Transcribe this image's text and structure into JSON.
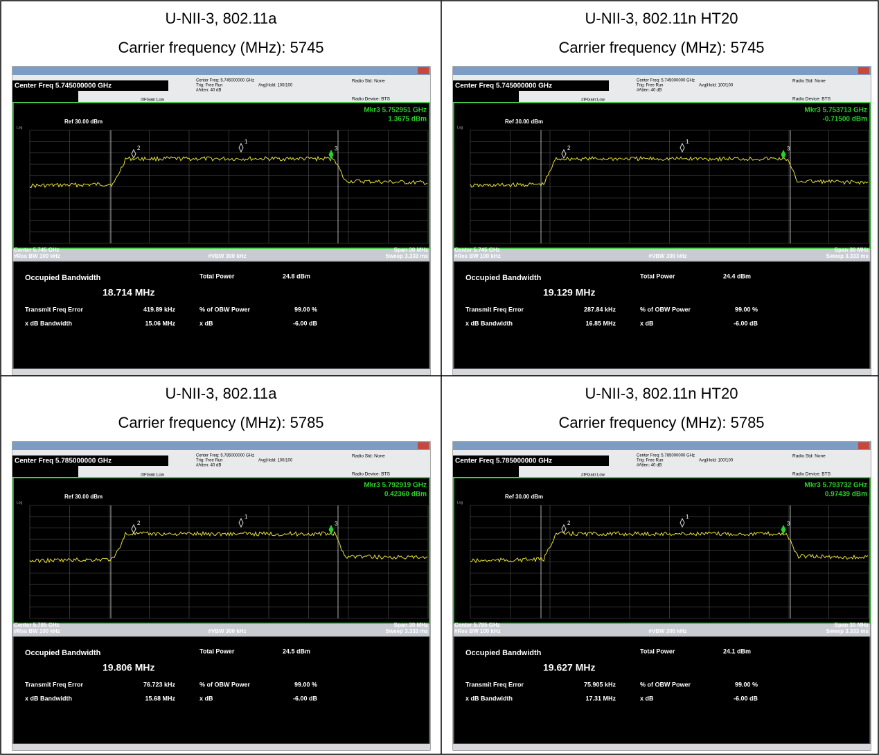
{
  "cells": [
    {
      "heading": [
        "U-NII-3, 802.11a",
        "Carrier frequency (MHz): 5745"
      ],
      "screen": {
        "center_freq_box": "Center Freq 5.745000000 GHz",
        "settings": [
          "Center Freq: 5.745000000 GHz",
          "Trig: Free Run",
          "#Atten: 40 dB"
        ],
        "avg_hold": "Avg|Hold: 100/100",
        "if_gain": "#IFGain:Low",
        "radio_std": "Radio Std: None",
        "radio_device": "Radio Device: BTS",
        "marker_freq": "Mkr3 5.752951 GHz",
        "marker_level": "1.3675 dBm",
        "ref_level": "Ref 30.00 dBm",
        "scale": "Log",
        "marker_labels": [
          "1",
          "2",
          "3"
        ],
        "center": "Center 5.745 GHz",
        "res_bw": "#Res BW 100 kHz",
        "vbw": "#VBW 300 kHz",
        "span": "Span 30 MHz",
        "sweep": "Sweep 3.333 ms",
        "results": {
          "obw_label": "Occupied Bandwidth",
          "obw_value": "18.714 MHz",
          "total_power_label": "Total Power",
          "total_power_value": "24.8 dBm",
          "freq_error_label": "Transmit Freq Error",
          "freq_error_value": "419.89 kHz",
          "obw_power_label": "% of OBW Power",
          "obw_power_value": "99.00 %",
          "xdb_bw_label": "x dB Bandwidth",
          "xdb_bw_value": "15.06 MHz",
          "xdb_label": "x dB",
          "xdb_value": "-6.00 dB"
        }
      }
    },
    {
      "heading": [
        "U-NII-3, 802.11n HT20",
        "Carrier frequency (MHz): 5745"
      ],
      "screen": {
        "center_freq_box": "Center Freq 5.745000000 GHz",
        "settings": [
          "Center Freq: 5.745000000 GHz",
          "Trig: Free Run",
          "#Atten: 40 dB"
        ],
        "avg_hold": "Avg|Hold: 100/100",
        "if_gain": "#IFGain:Low",
        "radio_std": "Radio Std: None",
        "radio_device": "Radio Device: BTS",
        "marker_freq": "Mkr3 5.753713 GHz",
        "marker_level": "-0.71500 dBm",
        "ref_level": "Ref 30.00 dBm",
        "scale": "Log",
        "marker_labels": [
          "1",
          "2",
          "3"
        ],
        "center": "Center 5.745 GHz",
        "res_bw": "#Res BW 100 kHz",
        "vbw": "#VBW 300 kHz",
        "span": "Span 30 MHz",
        "sweep": "Sweep 3.333 ms",
        "results": {
          "obw_label": "Occupied Bandwidth",
          "obw_value": "19.129 MHz",
          "total_power_label": "Total Power",
          "total_power_value": "24.4 dBm",
          "freq_error_label": "Transmit Freq Error",
          "freq_error_value": "287.84 kHz",
          "obw_power_label": "% of OBW Power",
          "obw_power_value": "99.00 %",
          "xdb_bw_label": "x dB Bandwidth",
          "xdb_bw_value": "16.85 MHz",
          "xdb_label": "x dB",
          "xdb_value": "-6.00 dB"
        }
      }
    },
    {
      "heading": [
        "U-NII-3, 802.11a",
        "Carrier frequency (MHz): 5785"
      ],
      "screen": {
        "center_freq_box": "Center Freq 5.785000000 GHz",
        "settings": [
          "Center Freq: 5.785000000 GHz",
          "Trig: Free Run",
          "#Atten: 40 dB"
        ],
        "avg_hold": "Avg|Hold: 100/100",
        "if_gain": "#IFGain:Low",
        "radio_std": "Radio Std: None",
        "radio_device": "Radio Device: BTS",
        "marker_freq": "Mkr3 5.792919 GHz",
        "marker_level": "0.42360 dBm",
        "ref_level": "Ref 30.00 dBm",
        "scale": "Log",
        "marker_labels": [
          "1",
          "2",
          "3"
        ],
        "center": "Center 5.785 GHz",
        "res_bw": "#Res BW 100 kHz",
        "vbw": "#VBW 300 kHz",
        "span": "Span 30 MHz",
        "sweep": "Sweep 3.333 ms",
        "results": {
          "obw_label": "Occupied Bandwidth",
          "obw_value": "19.806 MHz",
          "total_power_label": "Total Power",
          "total_power_value": "24.5 dBm",
          "freq_error_label": "Transmit Freq Error",
          "freq_error_value": "76.723 kHz",
          "obw_power_label": "% of OBW Power",
          "obw_power_value": "99.00 %",
          "xdb_bw_label": "x dB Bandwidth",
          "xdb_bw_value": "15.68 MHz",
          "xdb_label": "x dB",
          "xdb_value": "-6.00 dB"
        }
      }
    },
    {
      "heading": [
        "U-NII-3, 802.11n HT20",
        "Carrier frequency (MHz): 5785"
      ],
      "screen": {
        "center_freq_box": "Center Freq 5.785000000 GHz",
        "settings": [
          "Center Freq: 5.785000000 GHz",
          "Trig: Free Run",
          "#Atten: 40 dB"
        ],
        "avg_hold": "Avg|Hold: 100/100",
        "if_gain": "#IFGain:Low",
        "radio_std": "Radio Std: None",
        "radio_device": "Radio Device: BTS",
        "marker_freq": "Mkr3 5.793732 GHz",
        "marker_level": "0.97439 dBm",
        "ref_level": "Ref 30.00 dBm",
        "scale": "Log",
        "marker_labels": [
          "1",
          "2",
          "3"
        ],
        "center": "Center 5.785 GHz",
        "res_bw": "#Res BW 100 kHz",
        "vbw": "#VBW 300 kHz",
        "span": "Span 30 MHz",
        "sweep": "Sweep 3.333 ms",
        "results": {
          "obw_label": "Occupied Bandwidth",
          "obw_value": "19.627 MHz",
          "total_power_label": "Total Power",
          "total_power_value": "24.1 dBm",
          "freq_error_label": "Transmit Freq Error",
          "freq_error_value": "75.905 kHz",
          "obw_power_label": "% of OBW Power",
          "obw_power_value": "99.00 %",
          "xdb_bw_label": "x dB Bandwidth",
          "xdb_bw_value": "17.31 MHz",
          "xdb_label": "x dB",
          "xdb_value": "-6.00 dB"
        }
      }
    }
  ]
}
